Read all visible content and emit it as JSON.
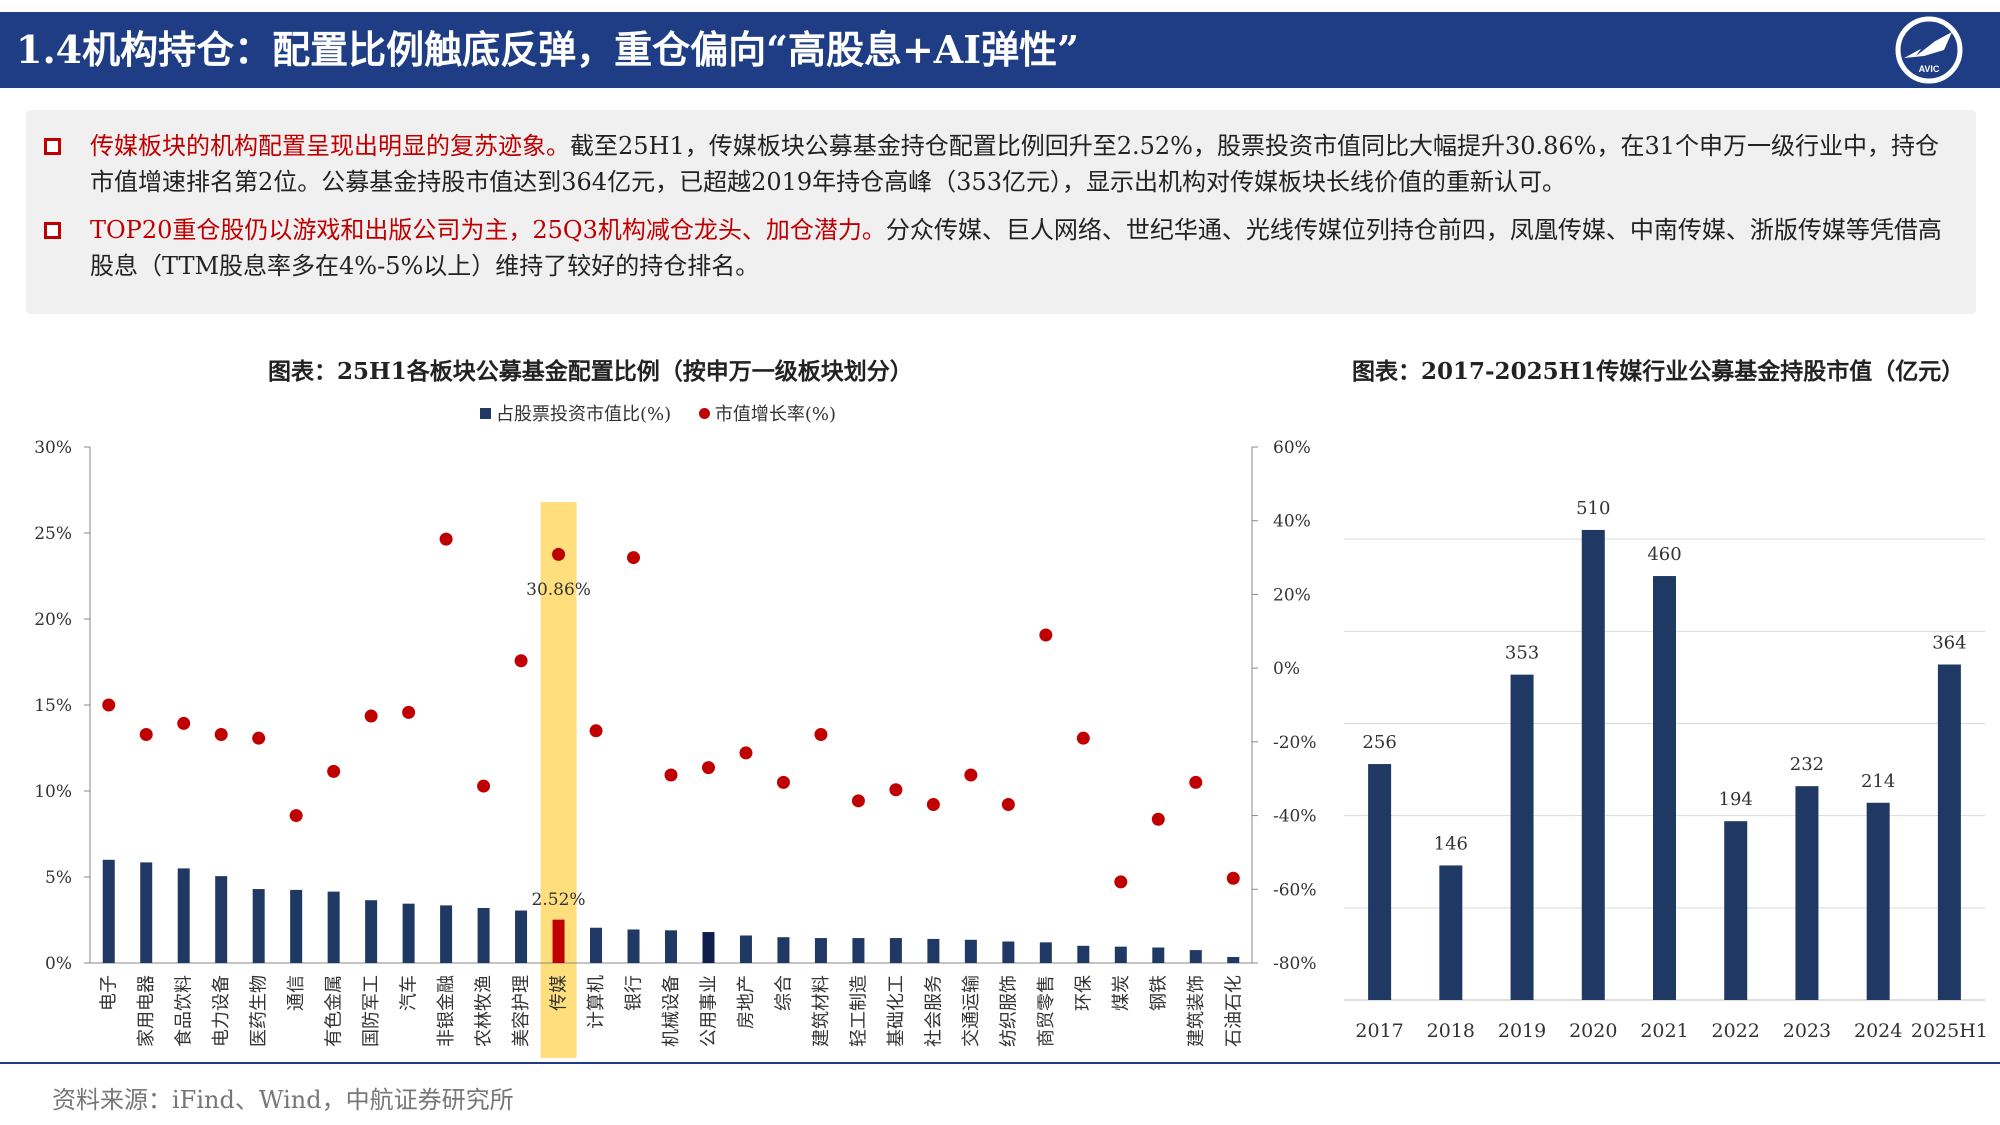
{
  "header": {
    "title": "1.4机构持仓：配置比例触底反弹，重仓偏向“高股息+AI弹性”"
  },
  "logo": {
    "icon": "avic-plane-icon",
    "text": "AVIC"
  },
  "summary": {
    "bullets": [
      {
        "highlight": "传媒板块的机构配置呈现出明显的复苏迹象。",
        "text": "截至25H1，传媒板块公募基金持仓配置比例回升至2.52%，股票投资市值同比大幅提升30.86%，在31个申万一级行业中，持仓市值增速排名第2位。公募基金持股市值达到364亿元，已超越2019年持仓高峰（353亿元），显示出机构对传媒板块长线价值的重新认可。"
      },
      {
        "highlight": "TOP20重仓股仍以游戏和出版公司为主，25Q3机构减仓龙头、加仓潜力。",
        "text": "分众传媒、巨人网络、世纪华通、光线传媒位列持仓前四，凤凰传媒、中南传媒、浙版传媒等凭借高股息（TTM股息率多在4%-5%以上）维持了较好的持仓排名。"
      }
    ]
  },
  "colors": {
    "bar": "#1f3864",
    "bar_dark": "#0f1f4d",
    "highlight_bar": "#c00000",
    "dot": "#c00000",
    "highlight_band": "#ffd966",
    "header": "#1f3d84"
  },
  "chart_data": [
    {
      "type": "bar",
      "title": "图表：25H1各板块公募基金配置比例（按申万一级板块划分）",
      "legend": [
        "占股票投资市值比(%)",
        "市值增长率(%)"
      ],
      "legend_position": "top-center",
      "categories": [
        "电子",
        "家用电器",
        "食品饮料",
        "电力设备",
        "医药生物",
        "通信",
        "有色金属",
        "国防军工",
        "汽车",
        "非银金融",
        "农林牧渔",
        "美容护理",
        "传媒",
        "计算机",
        "银行",
        "机械设备",
        "公用事业",
        "房地产",
        "综合",
        "建筑材料",
        "轻工制造",
        "基础化工",
        "社会服务",
        "交通运输",
        "纺织服饰",
        "商贸零售",
        "环保",
        "煤炭",
        "钢铁",
        "建筑装饰",
        "石油石化"
      ],
      "series": [
        {
          "name": "占股票投资市值比(%)",
          "axis": "left",
          "values": [
            6.0,
            5.85,
            5.5,
            5.05,
            4.3,
            4.25,
            4.15,
            3.65,
            3.45,
            3.35,
            3.2,
            3.05,
            2.52,
            2.05,
            1.95,
            1.9,
            1.8,
            1.6,
            1.5,
            1.45,
            1.45,
            1.45,
            1.4,
            1.35,
            1.25,
            1.2,
            1.0,
            0.95,
            0.9,
            0.75,
            0.35
          ]
        },
        {
          "name": "市值增长率(%)",
          "axis": "right",
          "values": [
            -10,
            -18,
            -15,
            -18,
            -19,
            -40,
            -28,
            -13,
            -12,
            35,
            -32,
            2,
            30.86,
            -17,
            30,
            -29,
            -27,
            -23,
            -31,
            -18,
            -36,
            -33,
            -37,
            -29,
            -37,
            9,
            -19,
            -58,
            -41,
            -31,
            -57
          ]
        }
      ],
      "highlight": {
        "category": "传媒",
        "bar_label": "2.52%",
        "dot_label": "30.86%"
      },
      "yleft": {
        "ticks": [
          "0%",
          "5%",
          "10%",
          "15%",
          "20%",
          "25%",
          "30%"
        ],
        "range": [
          0,
          30
        ]
      },
      "yright": {
        "ticks": [
          "-80%",
          "-60%",
          "-40%",
          "-20%",
          "0%",
          "20%",
          "40%",
          "60%"
        ],
        "range": [
          -80,
          60
        ]
      }
    },
    {
      "type": "bar",
      "title": "图表：2017-2025H1传媒行业公募基金持股市值（亿元）",
      "categories": [
        "2017",
        "2018",
        "2019",
        "2020",
        "2021",
        "2022",
        "2023",
        "2024",
        "2025H1"
      ],
      "values": [
        256,
        146,
        353,
        510,
        460,
        194,
        232,
        214,
        364
      ],
      "ylim": [
        0,
        600
      ],
      "grid": true
    }
  ],
  "source": "资料来源：iFind、Wind，中航证券研究所"
}
